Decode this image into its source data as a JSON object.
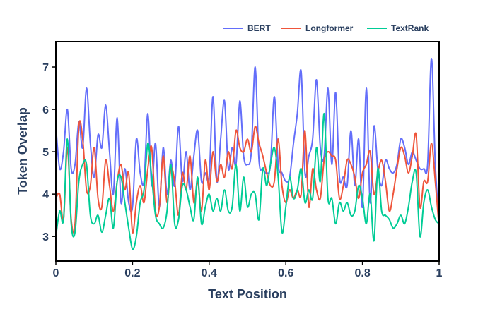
{
  "chart_data": {
    "type": "line",
    "title": "",
    "xlabel": "Text Position",
    "ylabel": "Token Overlap",
    "xlim": [
      0,
      1
    ],
    "ylim": [
      2.42,
      7.6
    ],
    "xticks": [
      0,
      0.2,
      0.4,
      0.6,
      0.8,
      1
    ],
    "xtick_labels": [
      "0",
      "0.2",
      "0.4",
      "0.6",
      "0.8",
      "1"
    ],
    "yticks": [
      3,
      4,
      5,
      6,
      7
    ],
    "ytick_labels": [
      "3",
      "4",
      "5",
      "6",
      "7"
    ],
    "legend_position": "top-right",
    "legend": [
      "BERT",
      "Longformer",
      "TextRank"
    ],
    "series": [
      {
        "name": "BERT",
        "color": "#636efa",
        "x": [
          0,
          0.01,
          0.02,
          0.03,
          0.04,
          0.05,
          0.06,
          0.07,
          0.08,
          0.09,
          0.1,
          0.11,
          0.12,
          0.13,
          0.14,
          0.15,
          0.16,
          0.17,
          0.18,
          0.19,
          0.2,
          0.21,
          0.22,
          0.23,
          0.24,
          0.25,
          0.26,
          0.27,
          0.28,
          0.29,
          0.3,
          0.31,
          0.32,
          0.33,
          0.34,
          0.35,
          0.36,
          0.37,
          0.38,
          0.39,
          0.4,
          0.41,
          0.42,
          0.43,
          0.44,
          0.45,
          0.46,
          0.47,
          0.48,
          0.49,
          0.5,
          0.51,
          0.52,
          0.53,
          0.54,
          0.55,
          0.56,
          0.57,
          0.58,
          0.59,
          0.6,
          0.61,
          0.62,
          0.63,
          0.64,
          0.65,
          0.66,
          0.67,
          0.68,
          0.69,
          0.7,
          0.71,
          0.72,
          0.73,
          0.74,
          0.75,
          0.76,
          0.77,
          0.78,
          0.79,
          0.8,
          0.81,
          0.82,
          0.83,
          0.84,
          0.85,
          0.86,
          0.87,
          0.88,
          0.89,
          0.9,
          0.91,
          0.92,
          0.93,
          0.94,
          0.95,
          0.96,
          0.97,
          0.98,
          0.99,
          1
        ],
        "values": [
          5.6,
          4.6,
          5.0,
          6.0,
          4.6,
          4.7,
          5.7,
          5.1,
          6.5,
          5.2,
          4.4,
          5.4,
          5.1,
          6.1,
          5.0,
          4.0,
          5.8,
          3.8,
          4.6,
          3.8,
          3.7,
          5.3,
          4.5,
          4.3,
          5.9,
          4.2,
          5.2,
          3.7,
          5.1,
          4.0,
          4.8,
          4.2,
          5.6,
          4.3,
          5.0,
          4.1,
          4.9,
          5.5,
          4.3,
          4.5,
          4.4,
          6.3,
          4.3,
          5.3,
          6.2,
          4.6,
          5.1,
          4.7,
          6.2,
          4.9,
          4.7,
          5.0,
          7.0,
          4.8,
          4.6,
          4.5,
          4.7,
          6.3,
          4.7,
          4.5,
          4.3,
          4.4,
          5.2,
          5.9,
          6.9,
          4.5,
          4.9,
          5.3,
          6.7,
          5.1,
          4.9,
          6.5,
          4.7,
          6.4,
          4.4,
          4.4,
          4.2,
          5.5,
          4.2,
          5.3,
          3.7,
          6.5,
          3.8,
          5.6,
          4.6,
          4.2,
          4.8,
          4.6,
          4.5,
          4.7,
          5.3,
          5.1,
          4.7,
          5.0,
          4.8,
          4.6,
          4.6,
          4.7,
          7.2,
          4.7,
          3.3
        ]
      },
      {
        "name": "Longformer",
        "color": "#ef553b",
        "x": [
          0,
          0.01,
          0.02,
          0.03,
          0.04,
          0.05,
          0.06,
          0.07,
          0.08,
          0.09,
          0.1,
          0.11,
          0.12,
          0.13,
          0.14,
          0.15,
          0.16,
          0.17,
          0.18,
          0.19,
          0.2,
          0.21,
          0.22,
          0.23,
          0.24,
          0.25,
          0.26,
          0.27,
          0.28,
          0.29,
          0.3,
          0.31,
          0.32,
          0.33,
          0.34,
          0.35,
          0.36,
          0.37,
          0.38,
          0.39,
          0.4,
          0.41,
          0.42,
          0.43,
          0.44,
          0.45,
          0.46,
          0.47,
          0.48,
          0.49,
          0.5,
          0.51,
          0.52,
          0.53,
          0.54,
          0.55,
          0.56,
          0.57,
          0.58,
          0.59,
          0.6,
          0.61,
          0.62,
          0.63,
          0.64,
          0.65,
          0.66,
          0.67,
          0.68,
          0.69,
          0.7,
          0.71,
          0.72,
          0.73,
          0.74,
          0.75,
          0.76,
          0.77,
          0.78,
          0.79,
          0.8,
          0.81,
          0.82,
          0.83,
          0.84,
          0.85,
          0.86,
          0.87,
          0.88,
          0.89,
          0.9,
          0.91,
          0.92,
          0.93,
          0.94,
          0.95,
          0.96,
          0.97,
          0.98,
          0.99,
          1
        ],
        "values": [
          3.9,
          4.0,
          3.4,
          5.1,
          3.4,
          3.3,
          5.6,
          5.3,
          4.1,
          4.2,
          5.1,
          3.9,
          3.7,
          4.8,
          4.2,
          3.6,
          4.3,
          4.7,
          4.1,
          4.5,
          3.1,
          3.8,
          4.2,
          3.8,
          4.6,
          5.1,
          3.6,
          3.7,
          4.9,
          3.8,
          4.6,
          4.3,
          3.5,
          4.5,
          4.1,
          4.9,
          3.8,
          4.3,
          3.6,
          4.8,
          4.1,
          5.0,
          4.3,
          4.7,
          4.4,
          5.0,
          4.6,
          5.5,
          5.1,
          5.0,
          5.3,
          5.0,
          5.6,
          5.2,
          4.9,
          4.5,
          4.2,
          4.3,
          5.3,
          4.2,
          3.8,
          4.1,
          3.9,
          4.1,
          4.0,
          5.5,
          3.7,
          4.6,
          4.1,
          3.9,
          4.8,
          5.0,
          4.9,
          4.8,
          3.9,
          4.2,
          4.8,
          4.7,
          4.4,
          3.9,
          4.5,
          4.7,
          5.0,
          4.0,
          4.5,
          4.8,
          4.3,
          3.6,
          4.0,
          4.6,
          5.1,
          4.9,
          4.5,
          4.9,
          5.4,
          3.7,
          4.3,
          4.3,
          5.2,
          4.3,
          3.2
        ]
      },
      {
        "name": "TextRank",
        "color": "#00cc96",
        "x": [
          0,
          0.01,
          0.02,
          0.03,
          0.04,
          0.05,
          0.06,
          0.07,
          0.08,
          0.09,
          0.1,
          0.11,
          0.12,
          0.13,
          0.14,
          0.15,
          0.16,
          0.17,
          0.18,
          0.19,
          0.2,
          0.21,
          0.22,
          0.23,
          0.24,
          0.25,
          0.26,
          0.27,
          0.28,
          0.29,
          0.3,
          0.31,
          0.32,
          0.33,
          0.34,
          0.35,
          0.36,
          0.37,
          0.38,
          0.39,
          0.4,
          0.41,
          0.42,
          0.43,
          0.44,
          0.45,
          0.46,
          0.47,
          0.48,
          0.49,
          0.5,
          0.51,
          0.52,
          0.53,
          0.54,
          0.55,
          0.56,
          0.57,
          0.58,
          0.59,
          0.6,
          0.61,
          0.62,
          0.63,
          0.64,
          0.65,
          0.66,
          0.67,
          0.68,
          0.69,
          0.7,
          0.71,
          0.72,
          0.73,
          0.74,
          0.75,
          0.76,
          0.77,
          0.78,
          0.79,
          0.8,
          0.81,
          0.82,
          0.83,
          0.84,
          0.85,
          0.86,
          0.87,
          0.88,
          0.89,
          0.9,
          0.91,
          0.92,
          0.93,
          0.94,
          0.95,
          0.96,
          0.97,
          0.98,
          0.99,
          1
        ],
        "values": [
          3.0,
          3.6,
          3.4,
          5.3,
          3.3,
          3.1,
          4.3,
          4.7,
          4.7,
          3.5,
          3.3,
          3.5,
          3.1,
          3.5,
          3.9,
          3.2,
          4.3,
          4.4,
          3.8,
          3.2,
          2.7,
          3.0,
          3.8,
          4.1,
          5.2,
          4.4,
          3.5,
          3.3,
          3.2,
          3.6,
          4.7,
          3.3,
          3.4,
          4.2,
          4.1,
          3.7,
          3.4,
          4.4,
          3.3,
          3.7,
          4.0,
          3.6,
          3.9,
          3.6,
          4.1,
          3.6,
          3.7,
          4.7,
          3.6,
          4.4,
          3.7,
          4.0,
          4.0,
          3.4,
          4.6,
          4.2,
          4.7,
          5.1,
          4.4,
          3.1,
          3.7,
          4.4,
          3.9,
          4.1,
          4.6,
          3.8,
          4.1,
          3.9,
          5.1,
          4.3,
          5.9,
          3.9,
          3.9,
          3.3,
          3.8,
          3.6,
          3.8,
          3.5,
          3.6,
          4.2,
          3.9,
          3.3,
          4.0,
          2.9,
          4.6,
          3.6,
          3.5,
          3.4,
          3.2,
          3.3,
          3.5,
          3.3,
          3.7,
          4.3,
          4.5,
          3.0,
          3.8,
          4.1,
          3.7,
          3.4,
          3.3
        ]
      }
    ]
  }
}
